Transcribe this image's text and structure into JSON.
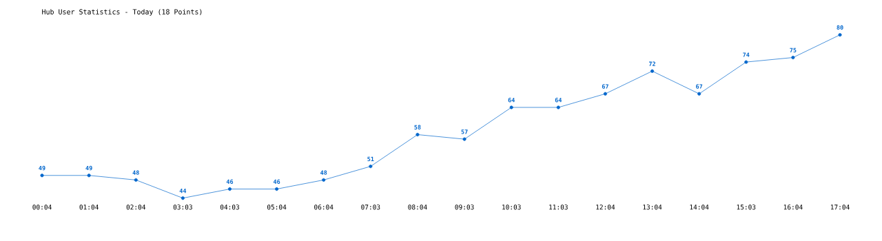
{
  "chart_data": {
    "type": "line",
    "title": "Hub User Statistics - Today (18 Points)",
    "categories": [
      "00:04",
      "01:04",
      "02:04",
      "03:03",
      "04:03",
      "05:04",
      "06:04",
      "07:03",
      "08:04",
      "09:03",
      "10:03",
      "11:03",
      "12:04",
      "13:04",
      "14:04",
      "15:03",
      "16:04",
      "17:04"
    ],
    "values": [
      49,
      49,
      48,
      44,
      46,
      46,
      48,
      51,
      58,
      57,
      64,
      64,
      67,
      72,
      67,
      74,
      75,
      80
    ],
    "color": "#0066cc",
    "marker": "circle",
    "line_style": "solid",
    "data_labels": true
  }
}
